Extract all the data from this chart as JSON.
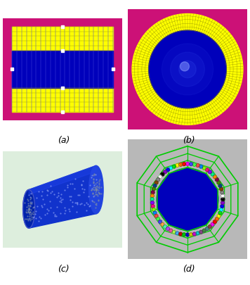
{
  "fig_width": 3.56,
  "fig_height": 4.06,
  "dpi": 100,
  "bg_color": "#ffffff",
  "label_a": "(a)",
  "label_b": "(b)",
  "label_c": "(c)",
  "label_d": "(d)",
  "magenta": "#CC1177",
  "yellow": "#FFFF00",
  "blue_dark": "#0000BB",
  "green_light": "#DDEEDD",
  "gray_bg": "#B8B8B8",
  "green_line": "#00CC00",
  "grid_line_color": "#8888AA",
  "yellow_grid_color": "#AAAA00"
}
